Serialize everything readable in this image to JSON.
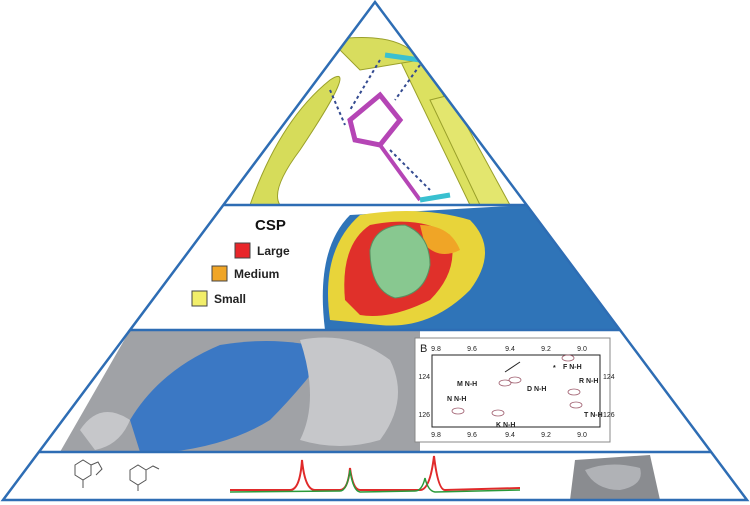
{
  "legend": {
    "title": "CSP",
    "items": [
      {
        "label": "Large",
        "color": "#e8262a"
      },
      {
        "label": "Medium",
        "color": "#f0a526"
      },
      {
        "label": "Small",
        "color": "#f2ee6a"
      }
    ]
  },
  "nmr_panel": {
    "panel_label": "B",
    "x_ticks": [
      "9.8",
      "9.6",
      "9.4",
      "9.2",
      "9.0"
    ],
    "y_ticks": [
      "124",
      "126"
    ],
    "peaks": [
      "M N-H",
      "D N-H",
      "N N-H",
      "K N-H",
      "F N-H",
      "R N-H",
      "T N-H"
    ],
    "marker": "*"
  }
}
